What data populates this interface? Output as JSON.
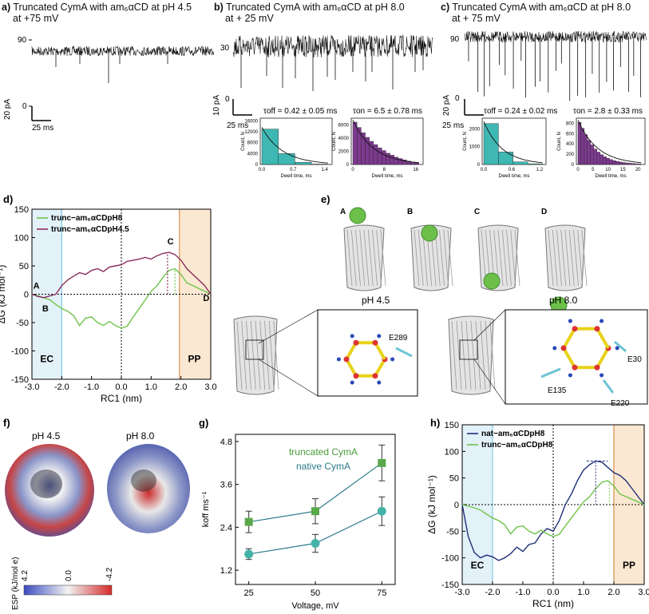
{
  "panel_a": {
    "label": "a)",
    "title_line1": "Truncated CymA with am₆αCD at pH 4.5",
    "title_line2": "at +75 mV",
    "ytick_top": "90",
    "ytick_bottom": "0",
    "scale_y": "20 pA",
    "scale_x": "25 ms"
  },
  "panel_b": {
    "label": "b)",
    "title_line1": "Truncated CymA with am₆αCD at pH 8.0",
    "title_line2": "at + 25 mV",
    "ytick_top": "30",
    "ytick_bottom": "0",
    "scale_y": "10 pA",
    "scale_x": "25 ms",
    "tau_off": "τoff = 0.42 ± 0.05 ms",
    "tau_on": "τon = 6.5 ± 0.78 ms",
    "hist_off": {
      "yticks": [
        "0",
        "4000",
        "8000",
        "12000",
        "16000"
      ],
      "xticks": [
        "0.0",
        "0.7",
        "1.4"
      ],
      "ylabel": "Count, N",
      "xlabel": "Dwell time, ms"
    },
    "hist_on": {
      "yticks": [
        "0",
        "2000",
        "4000",
        "6000"
      ],
      "xticks": [
        "0",
        "8",
        "16"
      ],
      "ylabel": "Count, N",
      "xlabel": "Dwell time, ms"
    }
  },
  "panel_c": {
    "label": "c)",
    "title_line1": "Truncated CymA with am₆αCD at pH 8.0",
    "title_line2": "at + 75 mV",
    "ytick_top": "90",
    "ytick_bottom": "0",
    "scale_y": "20 pA",
    "scale_x": "25 ms",
    "tau_off": "τoff = 0.24 ± 0.02 ms",
    "tau_on": "τon = 2.8 ± 0.33 ms",
    "hist_off": {
      "yticks": [
        "0",
        "1000",
        "2000"
      ],
      "xticks": [
        "0.0",
        "0.6",
        "1.2"
      ],
      "ylabel": "Count, N",
      "xlabel": "Dwell time, ms"
    },
    "hist_on": {
      "yticks": [
        "0",
        "200",
        "400",
        "600",
        "800"
      ],
      "xticks": [
        "0",
        "5",
        "10",
        "15",
        "20"
      ],
      "ylabel": "Count, N",
      "xlabel": "Dwell time, ms"
    }
  },
  "panel_d": {
    "label": "d)",
    "ylabel": "ΔG (kJ mol⁻¹)",
    "xlabel": "RC1 (nm)",
    "legend": [
      "trunc−am₆αCDpH8",
      "trunc−am₆αCDpH4.5"
    ],
    "region_left": "EC",
    "region_right": "PP",
    "points": [
      "A",
      "B",
      "C",
      "D"
    ]
  },
  "panel_e": {
    "label": "e)",
    "states": [
      "A",
      "B",
      "C",
      "D"
    ],
    "ph_left": "pH 4.5",
    "ph_right": "pH 8.0",
    "res_left": [
      "E289"
    ],
    "res_right": [
      "E30",
      "E135",
      "E220"
    ]
  },
  "panel_f": {
    "label": "f)",
    "ph_left": "pH 4.5",
    "ph_right": "pH 8.0",
    "cbar_label": "ESP (kJ/mol e)",
    "cbar_ticks": [
      "4.2",
      "0.0",
      "-4.2"
    ]
  },
  "panel_g": {
    "label": "g)",
    "ylabel": "koff ms⁻¹",
    "xlabel": "Voltage, mV",
    "legend": [
      "truncated CymA",
      "native CymA"
    ]
  },
  "panel_h": {
    "label": "h)",
    "ylabel": "ΔG (kJ mol⁻¹)",
    "xlabel": "RC1 (nm)",
    "legend": [
      "nat−am₆αCDpH8",
      "trunc−am₆αCDpH8"
    ],
    "region_left": "EC",
    "region_right": "PP"
  },
  "colors": {
    "green": "#6fc24a",
    "maroon": "#8a2d5e",
    "navy": "#1f2f7a",
    "teal_bar": "#3fb7b3",
    "purple_bar": "#7d3a8f",
    "ec_fill": "#e3f1f8",
    "pp_fill": "#fbe8d2",
    "pp_edge": "#cf7a2e",
    "ec_edge": "#6cc0e0"
  },
  "chart_data": [
    {
      "type": "line",
      "title": "",
      "xlabel": "RC1 (nm)",
      "ylabel": "ΔG (kJ mol⁻¹)",
      "xlim": [
        -3.0,
        3.0
      ],
      "ylim": [
        -150,
        150
      ],
      "xticks": [
        -3.0,
        -2.0,
        -1.0,
        0.0,
        1.0,
        2.0,
        3.0
      ],
      "yticks": [
        -150,
        -100,
        -50,
        0,
        50,
        100,
        150
      ],
      "series": [
        {
          "name": "trunc−am₆αCDpH8",
          "color": "#6fc24a",
          "x": [
            -3.0,
            -2.8,
            -2.6,
            -2.4,
            -2.2,
            -2.0,
            -1.8,
            -1.6,
            -1.4,
            -1.2,
            -1.0,
            -0.8,
            -0.6,
            -0.4,
            -0.2,
            0.0,
            0.2,
            0.4,
            0.6,
            0.8,
            1.0,
            1.2,
            1.4,
            1.6,
            1.8,
            2.0,
            2.2,
            2.4,
            2.6,
            2.8,
            3.0
          ],
          "y": [
            0,
            -3,
            -6,
            -10,
            -18,
            -25,
            -30,
            -38,
            -55,
            -42,
            -40,
            -50,
            -55,
            -48,
            -55,
            -60,
            -56,
            -40,
            -25,
            -10,
            5,
            15,
            30,
            42,
            45,
            35,
            20,
            15,
            10,
            5,
            0
          ]
        },
        {
          "name": "trunc−am₆αCDpH4.5",
          "color": "#8a2d5e",
          "x": [
            -3.0,
            -2.8,
            -2.6,
            -2.4,
            -2.2,
            -2.0,
            -1.8,
            -1.6,
            -1.4,
            -1.2,
            -1.0,
            -0.8,
            -0.6,
            -0.4,
            -0.2,
            0.0,
            0.2,
            0.4,
            0.6,
            0.8,
            1.0,
            1.2,
            1.4,
            1.6,
            1.8,
            2.0,
            2.2,
            2.4,
            2.6,
            2.8,
            3.0
          ],
          "y": [
            0,
            -4,
            -6,
            -3,
            0,
            15,
            25,
            32,
            38,
            35,
            42,
            45,
            40,
            48,
            50,
            52,
            58,
            60,
            62,
            65,
            62,
            68,
            72,
            74,
            70,
            60,
            45,
            35,
            25,
            15,
            0
          ]
        }
      ]
    },
    {
      "type": "scatter",
      "title": "",
      "xlabel": "Voltage, mV",
      "ylabel": "koff ms⁻¹",
      "xlim": [
        20,
        80
      ],
      "ylim": [
        0.8,
        5.0
      ],
      "yticks": [
        1.2,
        2.4,
        3.6,
        4.8
      ],
      "xticks": [
        25,
        50,
        75
      ],
      "series": [
        {
          "name": "truncated CymA",
          "color": "#4a9b3a",
          "x": [
            25,
            50,
            75
          ],
          "y": [
            2.55,
            2.85,
            4.2
          ],
          "err": [
            0.3,
            0.35,
            0.5
          ]
        },
        {
          "name": "native CymA",
          "color": "#3aa7a5",
          "x": [
            25,
            50,
            75
          ],
          "y": [
            1.65,
            1.95,
            2.85
          ],
          "err": [
            0.15,
            0.25,
            0.4
          ]
        }
      ]
    },
    {
      "type": "line",
      "title": "",
      "xlabel": "RC1 (nm)",
      "ylabel": "ΔG (kJ mol⁻¹)",
      "xlim": [
        -3.0,
        3.0
      ],
      "ylim": [
        -150,
        150
      ],
      "xticks": [
        -3.0,
        -2.0,
        -1.0,
        0.0,
        1.0,
        2.0,
        3.0
      ],
      "yticks": [
        -150,
        -100,
        -50,
        0,
        50,
        100,
        150
      ],
      "series": [
        {
          "name": "nat−am₆αCDpH8",
          "color": "#1f2f7a",
          "x": [
            -3.0,
            -2.8,
            -2.6,
            -2.4,
            -2.2,
            -2.0,
            -1.8,
            -1.6,
            -1.4,
            -1.2,
            -1.0,
            -0.8,
            -0.6,
            -0.4,
            -0.2,
            0.0,
            0.2,
            0.4,
            0.6,
            0.8,
            1.0,
            1.2,
            1.4,
            1.6,
            1.8,
            2.0,
            2.2,
            2.4,
            2.6,
            2.8,
            3.0
          ],
          "y": [
            0,
            -60,
            -90,
            -100,
            -95,
            -98,
            -105,
            -100,
            -92,
            -80,
            -88,
            -75,
            -72,
            -55,
            -45,
            -50,
            -30,
            0,
            20,
            45,
            65,
            75,
            82,
            80,
            70,
            60,
            55,
            45,
            30,
            15,
            0
          ]
        },
        {
          "name": "trunc−am₆αCDpH8",
          "color": "#6fc24a",
          "x": [
            -3.0,
            -2.8,
            -2.6,
            -2.4,
            -2.2,
            -2.0,
            -1.8,
            -1.6,
            -1.4,
            -1.2,
            -1.0,
            -0.8,
            -0.6,
            -0.4,
            -0.2,
            0.0,
            0.2,
            0.4,
            0.6,
            0.8,
            1.0,
            1.2,
            1.4,
            1.6,
            1.8,
            2.0,
            2.2,
            2.4,
            2.6,
            2.8,
            3.0
          ],
          "y": [
            0,
            -3,
            -6,
            -10,
            -18,
            -25,
            -30,
            -38,
            -55,
            -42,
            -40,
            -50,
            -55,
            -48,
            -55,
            -60,
            -56,
            -40,
            -25,
            -10,
            5,
            15,
            30,
            42,
            45,
            35,
            20,
            15,
            10,
            5,
            0
          ]
        }
      ]
    },
    {
      "type": "bar",
      "title": "",
      "xlabel": "Dwell time, ms",
      "ylabel": "Count, N",
      "note": "panel b τoff histogram",
      "categories": [
        "0.0-0.35",
        "0.35-0.7",
        "0.7-1.05",
        "1.05-1.4"
      ],
      "values": [
        13000,
        4000,
        800,
        150
      ]
    },
    {
      "type": "bar",
      "title": "",
      "xlabel": "Dwell time, ms",
      "ylabel": "Count, N",
      "note": "panel b τon histogram",
      "categories": [
        "0-1",
        "1-2",
        "2-3",
        "3-4",
        "4-5",
        "5-6",
        "6-7",
        "7-8",
        "8-9",
        "9-10",
        "10-11",
        "11-12",
        "12-13",
        "13-14",
        "14-15",
        "15-16"
      ],
      "values": [
        6400,
        5600,
        4800,
        4100,
        3500,
        3000,
        2500,
        2100,
        1700,
        1400,
        1100,
        900,
        700,
        500,
        350,
        250
      ]
    },
    {
      "type": "bar",
      "title": "",
      "xlabel": "Dwell time, ms",
      "ylabel": "Count, N",
      "note": "panel c τoff histogram",
      "categories": [
        "0.0-0.3",
        "0.3-0.6",
        "0.6-0.9",
        "0.9-1.2"
      ],
      "values": [
        2300,
        700,
        150,
        40
      ]
    },
    {
      "type": "bar",
      "title": "",
      "xlabel": "Dwell time, ms",
      "ylabel": "Count, N",
      "note": "panel c τon histogram",
      "categories": [
        "0-1",
        "1-2",
        "2-3",
        "3-4",
        "4-5",
        "5-6",
        "6-7",
        "7-8",
        "8-9",
        "9-10",
        "10-11",
        "11-12",
        "12-13",
        "13-14",
        "14-15",
        "15-16",
        "16-17",
        "17-18",
        "18-19",
        "19-20"
      ],
      "values": [
        820,
        700,
        580,
        470,
        380,
        300,
        240,
        190,
        150,
        120,
        95,
        75,
        60,
        48,
        38,
        30,
        24,
        18,
        14,
        10
      ]
    }
  ]
}
